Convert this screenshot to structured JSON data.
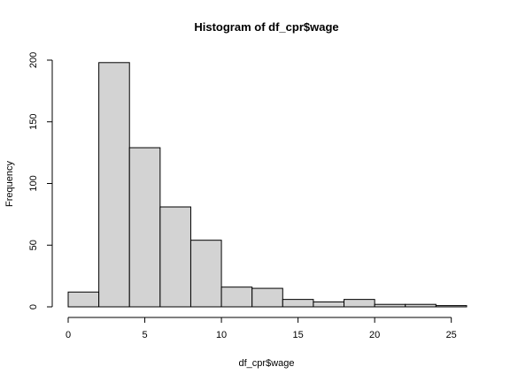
{
  "chart_data": {
    "type": "bar",
    "title": "Histogram of df_cpr$wage",
    "xlabel": "df_cpr$wage",
    "ylabel": "Frequency",
    "bins": [
      {
        "x0": 0,
        "x1": 2,
        "count": 12
      },
      {
        "x0": 2,
        "x1": 4,
        "count": 198
      },
      {
        "x0": 4,
        "x1": 6,
        "count": 129
      },
      {
        "x0": 6,
        "x1": 8,
        "count": 81
      },
      {
        "x0": 8,
        "x1": 10,
        "count": 54
      },
      {
        "x0": 10,
        "x1": 12,
        "count": 16
      },
      {
        "x0": 12,
        "x1": 14,
        "count": 15
      },
      {
        "x0": 14,
        "x1": 16,
        "count": 6
      },
      {
        "x0": 16,
        "x1": 18,
        "count": 4
      },
      {
        "x0": 18,
        "x1": 20,
        "count": 6
      },
      {
        "x0": 20,
        "x1": 22,
        "count": 2
      },
      {
        "x0": 22,
        "x1": 24,
        "count": 2
      },
      {
        "x0": 24,
        "x1": 26,
        "count": 1
      }
    ],
    "xticks": [
      0,
      5,
      10,
      15,
      20,
      25
    ],
    "yticks": [
      0,
      50,
      100,
      150,
      200
    ],
    "xlim": [
      0,
      26
    ],
    "ylim": [
      0,
      200
    ],
    "bar_color": "#d3d3d3",
    "grid": false
  }
}
